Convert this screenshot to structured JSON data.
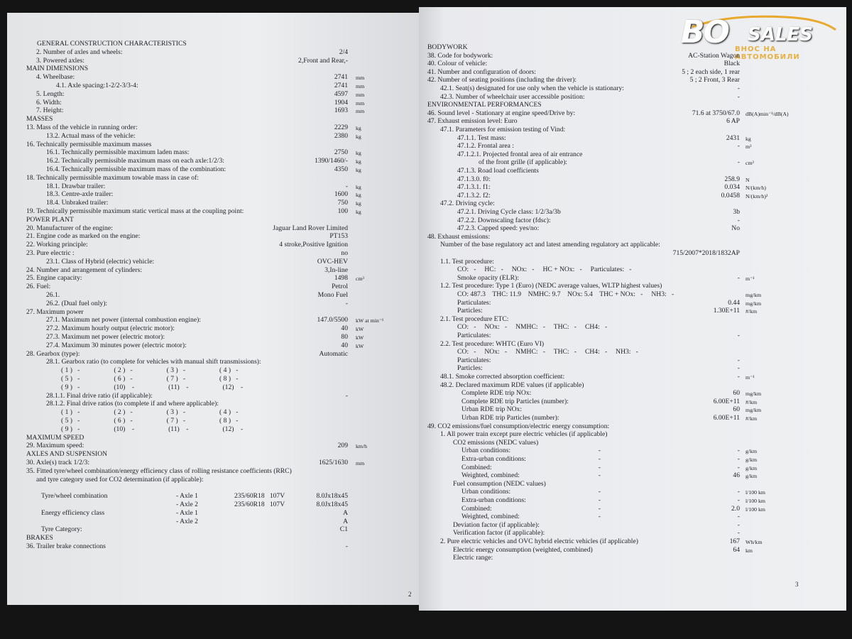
{
  "logo": {
    "brand": "BO",
    "brand2": "SALES",
    "tagline": "ВНОС НА АВТОМОБИЛИ"
  },
  "pages": [
    {
      "page_number": "2",
      "sections": [
        {
          "heading": "GENERAL CONSTRUCTION CHARACTERISTICS",
          "rows": [
            {
              "label": "2. Number of axles and wheels:",
              "value": "2/4"
            },
            {
              "label": "3. Powered axles:",
              "value": "2,Front and Rear,-"
            }
          ]
        },
        {
          "heading": "MAIN DIMENSIONS",
          "rows": [
            {
              "label": "4. Wheelbase:",
              "value": "2741",
              "unit": "mm"
            },
            {
              "label": "4.1. Axle spacing:1-2/2-3/3-4:",
              "value": "2741",
              "unit": "mm"
            },
            {
              "label": "5. Length:",
              "value": "4597",
              "unit": "mm"
            },
            {
              "label": "6. Width:",
              "value": "1904",
              "unit": "mm"
            },
            {
              "label": "7. Height:",
              "value": "1693",
              "unit": "mm"
            }
          ]
        },
        {
          "heading": "MASSES",
          "rows": [
            {
              "label": "13. Mass of the vehicle in running order:",
              "value": "2229",
              "unit": "kg"
            },
            {
              "label": "13.2. Actual mass of the vehicle:",
              "value": "2380",
              "unit": "kg"
            },
            {
              "label": "16. Technically permissible maximum masses"
            },
            {
              "label": "16.1. Technically permissible maximum laden mass:",
              "value": "2750",
              "unit": "kg"
            },
            {
              "label": "16.2. Technically permissible maximum mass on each axle:1/2/3:",
              "value": "1390/1460/-",
              "unit": "kg"
            },
            {
              "label": "16.4. Technically permissible maximum mass of the combination:",
              "value": "4350",
              "unit": "kg"
            },
            {
              "label": "18. Technically permissible maximum towable mass in case of:"
            },
            {
              "label": "18.1. Drawbar trailer:",
              "value": "-",
              "unit": "kg"
            },
            {
              "label": "18.3. Centre-axle trailer:",
              "value": "1600",
              "unit": "kg"
            },
            {
              "label": "18.4. Unbraked trailer:",
              "value": "750",
              "unit": "kg"
            },
            {
              "label": "19. Technically permissible maximum static vertical mass at the coupling point:",
              "value": "100",
              "unit": "kg"
            }
          ]
        },
        {
          "heading": "POWER PLANT",
          "rows": [
            {
              "label": "20. Manufacturer of the engine:",
              "value": "Jaguar Land Rover Limited"
            },
            {
              "label": "21. Engine code as marked on the engine:",
              "value": "PT153"
            },
            {
              "label": "22. Working principle:",
              "value": "4 stroke,Positive Ignition"
            },
            {
              "label": "23. Pure electric :",
              "value": "no"
            },
            {
              "label": "23.1. Class of Hybrid (electric) vehicle:",
              "value": "OVC-HEV"
            },
            {
              "label": "24. Number and arrangement of cylinders:",
              "value": "3,In-line"
            },
            {
              "label": "25. Engine capacity:",
              "value": "1498",
              "unit": "cm³"
            },
            {
              "label": "26. Fuel:",
              "value": "Petrol"
            },
            {
              "label": "26.1.",
              "value": "Mono Fuel"
            },
            {
              "label": "26.2. (Dual fuel only):",
              "value": "-"
            },
            {
              "label": "27. Maximum power"
            },
            {
              "label": "27.1. Maximum net power (internal combustion engine):",
              "value": "147.0/5500",
              "unit": "kW at min⁻¹"
            },
            {
              "label": "27.2. Maximum hourly output (electric motor):",
              "value": "40",
              "unit": "kW"
            },
            {
              "label": "27.3. Maximum net power (electric motor):",
              "value": "80",
              "unit": "kW"
            },
            {
              "label": "27.4. Maximum 30 minutes power (electric motor):",
              "value": "40",
              "unit": "kW"
            },
            {
              "label": "28. Gearbox (type):",
              "value": "Automatic"
            },
            {
              "label": "28.1. Gearbox ratio (to complete for vehicles with manual shift transmissions):"
            },
            {
              "label": "( 1 )   -                    ( 2 )   -                    ( 3 )   -                    ( 4 )   -"
            },
            {
              "label": "( 5 )   -                    ( 6 )   -                    ( 7 )   -                    ( 8 )   -"
            },
            {
              "label": "( 9 )   -                    (10)    -                    (11)    -                    (12)    -"
            },
            {
              "label": "28.1.1. Final drive ratio (if applicable):",
              "value": "-"
            },
            {
              "label": "28.1.2. Final drive ratios (to complete if and where applicable):"
            },
            {
              "label": "( 1 )   -                    ( 2 )   -                    ( 3 )   -                    ( 4 )   -"
            },
            {
              "label": "( 5 )   -                    ( 6 )   -                    ( 7 )   -                    ( 8 )   -"
            },
            {
              "label": "( 9 )   -                    (10)    -                    (11)    -                    (12)    -"
            }
          ]
        },
        {
          "heading": "MAXIMUM SPEED",
          "rows": [
            {
              "label": "29. Maximum speed:",
              "value": "209",
              "unit": "km/h"
            }
          ]
        },
        {
          "heading": "AXLES AND SUSPENSION",
          "rows": [
            {
              "label": "30. Axle(s) track 1/2/3:",
              "value": "1625/1630",
              "unit": "mm"
            },
            {
              "label": "35. Fitted tyre/wheel combination/energy efficiency class of rolling resistance coefficients (RRC)"
            },
            {
              "label": "and tyre category used for CO2 determination (if applicable):"
            },
            {
              "label": "Tyre/wheel combination",
              "axle": "- Axle 1",
              "size": "235/60R18   107V",
              "value": "8.0Jx18x45"
            },
            {
              "axle": "- Axle 2",
              "size": "235/60R18   107V",
              "value": "8.0Jx18x45"
            },
            {
              "label": "Energy efficiency class",
              "axle": "- Axle 1",
              "value": "A"
            },
            {
              "axle": "- Axle 2",
              "value": "A"
            },
            {
              "label": "Tyre Category:",
              "value": "C1"
            }
          ]
        },
        {
          "heading": "BRAKES",
          "rows": [
            {
              "label": "36. Trailer brake connections",
              "value": "-"
            }
          ]
        }
      ]
    },
    {
      "page_number": "3",
      "sections": [
        {
          "heading": "BODYWORK",
          "rows": [
            {
              "label": "38. Code for bodywork:",
              "value": "AC-Station Wagon"
            },
            {
              "label": "40. Colour of vehicle:",
              "value": "Black"
            },
            {
              "label": "41. Number and configuration of doors:",
              "value": "5 ; 2 each side, 1 rear"
            },
            {
              "label": "42. Number of seating positions (including the driver):",
              "value": "5 ; 2 Front, 3 Rear"
            },
            {
              "label": "42.1. Seat(s) designated for use only when the vehicle is stationary:",
              "value": "-"
            },
            {
              "label": "42.3. Number of wheelchair user accessible position:",
              "value": "-"
            }
          ]
        },
        {
          "heading": "ENVIRONMENTAL PERFORMANCES",
          "rows": [
            {
              "label": "46. Sound level - Stationary at engine speed/Drive by:",
              "value": "71.6 at 3750/67.0",
              "unit": "dB(A)min⁻¹/dB(A)"
            },
            {
              "label": "47. Exhaust emission level: Euro",
              "value": "6 AP"
            },
            {
              "label": "47.1. Parameters for emission testing of Vind:"
            },
            {
              "label": "47.1.1. Test mass:",
              "value": "2431",
              "unit": "kg"
            },
            {
              "label": "47.1.2. Frontal area :",
              "value": "-",
              "unit": "m²"
            },
            {
              "label": "47.1.2.1. Projected frontal area of air entrance"
            },
            {
              "label": "of the front grille (if applicable):",
              "value": "-",
              "unit": "cm²"
            },
            {
              "label": "47.1.3. Road load coefficients"
            },
            {
              "label": "47.1.3.0. f0:",
              "value": "258.9",
              "unit": "N"
            },
            {
              "label": "47.1.3.1. f1:",
              "value": "0.034",
              "unit": "N/(km/h)"
            },
            {
              "label": "47.1.3.2. f2:",
              "value": "0.0458",
              "unit": "N/(km/h)²"
            },
            {
              "label": "47.2. Driving cycle:"
            },
            {
              "label": "47.2.1. Driving Cycle class: 1/2/3a/3b",
              "value": "3b"
            },
            {
              "label": "47.2.2. Downscaling factor (fdsc):",
              "value": "-"
            },
            {
              "label": "47.2.3. Capped speed: yes/no:",
              "value": "No"
            },
            {
              "label": "48. Exhaust emissions:"
            },
            {
              "label": "Number of the base regulatory act and latest amending regulatory act applicable:"
            },
            {
              "value": "715/2007*2018/1832AP"
            },
            {
              "label": "1.1. Test procedure:"
            },
            {
              "label": "CO:   -     HC:   -     NOx:   -     HC + NOx:   -     Particulates:   -"
            },
            {
              "label": "Smoke opacity (ELR):",
              "value": "-",
              "unit": "m⁻¹"
            },
            {
              "label": "1.2. Test procedure: Type 1 (Euro) (NEDC average values, WLTP highest values)"
            },
            {
              "label": "CO: 487.3    THC: 11.9    NMHC: 9.7    NOx: 5.4    THC + NOx:   -     NH3:   -",
              "unit": "mg/km"
            },
            {
              "label": "Particulates:",
              "value": "0.44",
              "unit": "mg/km"
            },
            {
              "label": "Particles:",
              "value": "1.30E+11",
              "unit": "#/km"
            },
            {
              "label": "2.1. Test procedure ETC:"
            },
            {
              "label": "CO:   -     NOx:   -     NMHC:   -     THC:   -     CH4:   -"
            },
            {
              "label": "Particulates:",
              "value": "-"
            },
            {
              "label": "2.2. Test procedure: WHTC (Euro VI)"
            },
            {
              "label": "CO:   -     NOx:   -     NMHC:   -     THC:   -     CH4:   -     NH3:   -"
            },
            {
              "label": "Particulates:",
              "value": "-"
            },
            {
              "label": "Particles:",
              "value": "-"
            },
            {
              "label": "48.1. Smoke corrected absorption coefficient:",
              "value": "-",
              "unit": "m⁻¹"
            },
            {
              "label": "48.2. Declared maximum RDE values (if applicable)"
            },
            {
              "label": "Complete RDE trip NOx:",
              "value": "60",
              "unit": "mg/km"
            },
            {
              "label": "Complete RDE trip Particles (number):",
              "value": "6.00E+11",
              "unit": "#/km"
            },
            {
              "label": "Urban RDE trip NOx:",
              "value": "60",
              "unit": "mg/km"
            },
            {
              "label": "Urban RDE trip Particles (number):",
              "value": "6.00E+11",
              "unit": "#/km"
            },
            {
              "label": "49. CO2 emissions/fuel consumption/electric energy consumption:"
            },
            {
              "label": "1. All power train except pure electric vehicles (if applicable)"
            },
            {
              "label": "CO2 emissions (NEDC values)"
            },
            {
              "label": "Urban conditions:",
              "mid": "-",
              "value": "-",
              "unit": "g/km"
            },
            {
              "label": "Extra-urban conditions:",
              "mid": "-",
              "value": "-",
              "unit": "g/km"
            },
            {
              "label": "Combined:",
              "mid": "-",
              "value": "-",
              "unit": "g/km"
            },
            {
              "label": "Weighted, combined:",
              "mid": "-",
              "value": "46",
              "unit": "g/km"
            },
            {
              "label": "Fuel consumption (NEDC values)"
            },
            {
              "label": "Urban conditions:",
              "mid": "-",
              "value": "-",
              "unit": "l/100 km"
            },
            {
              "label": "Extra-urban conditions:",
              "mid": "-",
              "value": "-",
              "unit": "l/100 km"
            },
            {
              "label": "Combined:",
              "mid": "-",
              "value": "2.0",
              "unit": "l/100 km"
            },
            {
              "label": "Weighted, combined:",
              "mid": "-",
              "value": "-"
            },
            {
              "label": "Deviation factor (if applicable):",
              "value": "-"
            },
            {
              "label": "Verification factor (if applicable):",
              "value": "-"
            },
            {
              "label": "2. Pure electric vehicles and OVC hybrid electric vehicles (if applicable)",
              "value": "167",
              "unit": "Wh/km"
            },
            {
              "label": "Electric energy consumption (weighted, combined)",
              "value": "64",
              "unit": "km"
            },
            {
              "label": "Electric range:"
            }
          ]
        }
      ]
    }
  ]
}
